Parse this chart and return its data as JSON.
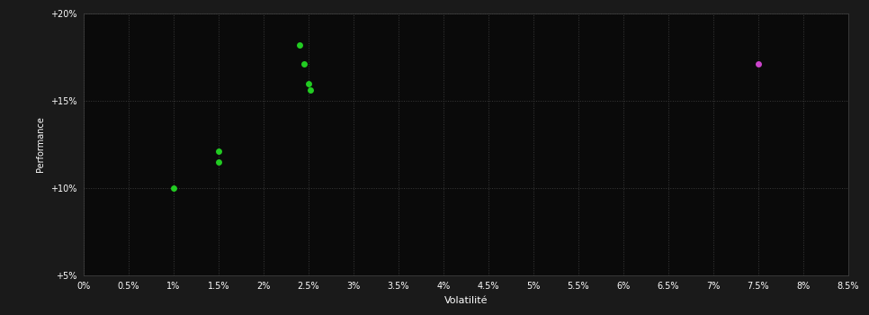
{
  "background_color": "#1a1a1a",
  "plot_bg_color": "#0a0a0a",
  "text_color": "#ffffff",
  "xlabel": "Volatilité",
  "ylabel": "Performance",
  "xlim": [
    0.0,
    0.085
  ],
  "ylim": [
    0.05,
    0.2
  ],
  "xticks": [
    0.0,
    0.005,
    0.01,
    0.015,
    0.02,
    0.025,
    0.03,
    0.035,
    0.04,
    0.045,
    0.05,
    0.055,
    0.06,
    0.065,
    0.07,
    0.075,
    0.08,
    0.085
  ],
  "xtick_labels": [
    "0%",
    "0.5%",
    "1%",
    "1.5%",
    "2%",
    "2.5%",
    "3%",
    "3.5%",
    "4%",
    "4.5%",
    "5%",
    "5.5%",
    "6%",
    "6.5%",
    "7%",
    "7.5%",
    "8%",
    "8.5%"
  ],
  "yticks": [
    0.05,
    0.1,
    0.15,
    0.2
  ],
  "ytick_labels": [
    "+5%",
    "+10%",
    "+15%",
    "+20%"
  ],
  "green_points": [
    [
      0.01,
      0.1
    ],
    [
      0.015,
      0.121
    ],
    [
      0.015,
      0.115
    ],
    [
      0.024,
      0.182
    ],
    [
      0.0245,
      0.171
    ],
    [
      0.025,
      0.16
    ],
    [
      0.0252,
      0.156
    ]
  ],
  "purple_points": [
    [
      0.075,
      0.171
    ]
  ],
  "green_color": "#22cc22",
  "purple_color": "#cc44cc",
  "marker_size": 5,
  "dpi": 100
}
